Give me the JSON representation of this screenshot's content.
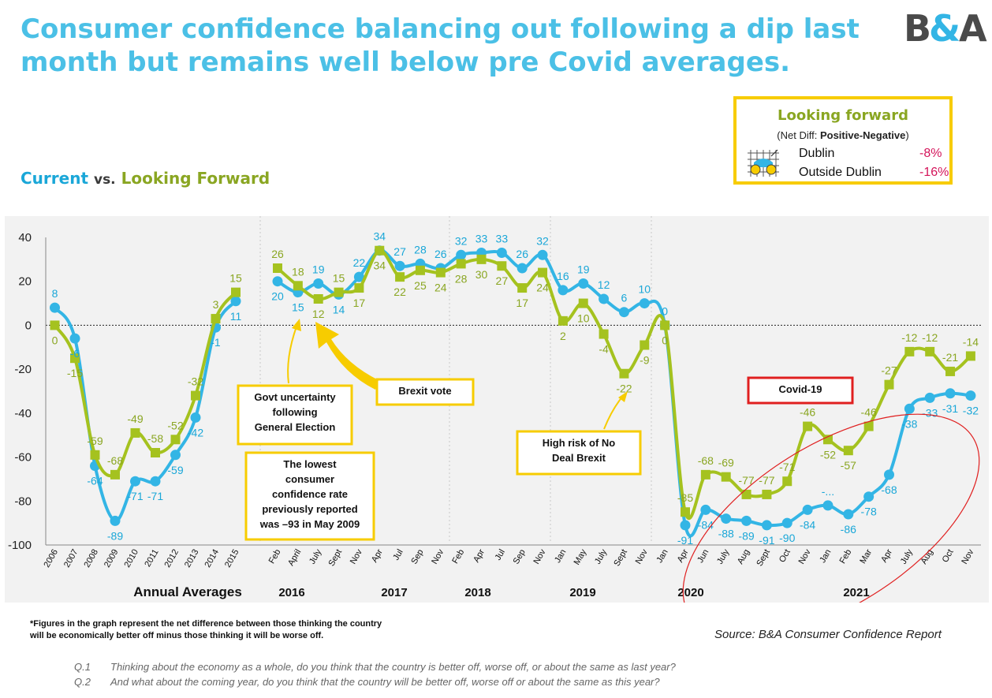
{
  "header": {
    "title": "Consumer confidence balancing out following a dip last month but remains well below pre Covid averages.",
    "logo_text": "B&A",
    "legend_current": "Current",
    "legend_vs": "vs.",
    "legend_forward": "Looking Forward"
  },
  "looking_forward_box": {
    "title": "Looking forward",
    "subtitle_prefix": "(Net Diff: ",
    "subtitle_bold": "Positive-Negative",
    "subtitle_suffix": ")",
    "rows": [
      {
        "label": "Dublin",
        "value": "-8%"
      },
      {
        "label": "Outside Dublin",
        "value": "-16%"
      }
    ]
  },
  "chart_data": {
    "type": "line",
    "ylim": [
      -100,
      40
    ],
    "yticks": [
      40,
      20,
      0,
      -20,
      -40,
      -60,
      -80,
      -100
    ],
    "grid": false,
    "colors": {
      "current": "#33b5e5",
      "forward": "#a5c21f",
      "current_label": "#1aa7d8",
      "forward_label": "#8aa622"
    },
    "x_labels": [
      "2006",
      "2007",
      "2008",
      "2009",
      "2010",
      "2011",
      "2012",
      "2013",
      "2014",
      "2015",
      "Feb",
      "April",
      "July",
      "Sept",
      "Nov",
      "Apr",
      "Jul",
      "Sep",
      "Nov",
      "Feb",
      "Apr",
      "Jul",
      "Sep",
      "Nov",
      "Jan",
      "May",
      "July",
      "Sept",
      "Nov",
      "Jan",
      "Apr",
      "Jun",
      "July",
      "Aug",
      "Sept",
      "Oct",
      "Nov",
      "Jan",
      "Feb",
      "Mar",
      "Apr",
      "July",
      "Aug",
      "Oct",
      "Nov"
    ],
    "groups": [
      "Annual Averages",
      "2016",
      "2017",
      "2018",
      "2019",
      "2020",
      "2021"
    ],
    "series": [
      {
        "name": "Current",
        "segments": [
          [
            8,
            -6,
            -64,
            -89,
            -71,
            -71,
            -59,
            -42,
            -1,
            11
          ],
          [
            20,
            15,
            19,
            14,
            22,
            34,
            27,
            28,
            26,
            32,
            33,
            33,
            26,
            32,
            16,
            19,
            12,
            6,
            10,
            0,
            -91,
            -84,
            -88,
            -89,
            -91,
            -90,
            -84,
            -82,
            -86,
            -78,
            -68,
            -38,
            -33,
            -31,
            -32
          ]
        ],
        "labels": [
          "8",
          "-6",
          "-64",
          "-89",
          "-71",
          "-71",
          "-59",
          "-42",
          "-1",
          "11",
          "20",
          "15",
          "19",
          "14",
          "22",
          "34",
          "27",
          "28",
          "26",
          "32",
          "33",
          "33",
          "26",
          "32",
          "16",
          "19",
          "12",
          "6",
          "10",
          "0",
          "-91",
          "-84",
          "-88",
          "-89",
          "-91",
          "-90",
          "-84",
          "-...",
          "-86",
          "-78",
          "-68",
          "-38",
          "-33",
          "-31",
          "-32"
        ]
      },
      {
        "name": "Looking Forward",
        "segments": [
          [
            0,
            -15,
            -59,
            -68,
            -49,
            -58,
            -52,
            -32,
            3,
            15
          ],
          [
            26,
            18,
            12,
            15,
            17,
            34,
            22,
            25,
            24,
            28,
            30,
            27,
            17,
            24,
            2,
            10,
            -4,
            -22,
            -9,
            0,
            -85,
            -68,
            -69,
            -77,
            -77,
            -71,
            -46,
            -52,
            -57,
            -46,
            -27,
            -12,
            -12,
            -21,
            -14
          ]
        ],
        "labels": [
          "0",
          "-15",
          "-59",
          "-68",
          "-49",
          "-58",
          "-52",
          "-32",
          "3",
          "15",
          "26",
          "18",
          "12",
          "15",
          "17",
          "34",
          "22",
          "25",
          "24",
          "28",
          "30",
          "27",
          "17",
          "24",
          "2",
          "10",
          "-4",
          "-22",
          "-9",
          "0",
          "-85",
          "-68",
          "-69",
          "-77",
          "-77",
          "-71",
          "-46",
          "-52",
          "-57",
          "-46",
          "-27",
          "-12",
          "-12",
          "-21",
          "-14"
        ]
      }
    ],
    "annotations": [
      {
        "text": "Govt uncertainty following General Election"
      },
      {
        "text": "Brexit vote"
      },
      {
        "text": "The lowest consumer confidence rate previously reported was –93 in May 2009"
      },
      {
        "text": "High risk of No Deal Brexit"
      },
      {
        "text": "Covid-19"
      }
    ]
  },
  "footer": {
    "footnote_line1": "*Figures in the graph represent the net difference between those thinking the country",
    "footnote_line2": "will be economically better off minus those thinking it will be worse off.",
    "source": "Source: B&A Consumer Confidence Report",
    "q1_num": "Q.1",
    "q1_text": "Thinking about the economy as a whole, do you think that the country is better off, worse off, or about the same as last year?",
    "q2_num": "Q.2",
    "q2_text": "And what about the coming year, do you think that the country will be better off, worse off or about the same as this year?"
  }
}
